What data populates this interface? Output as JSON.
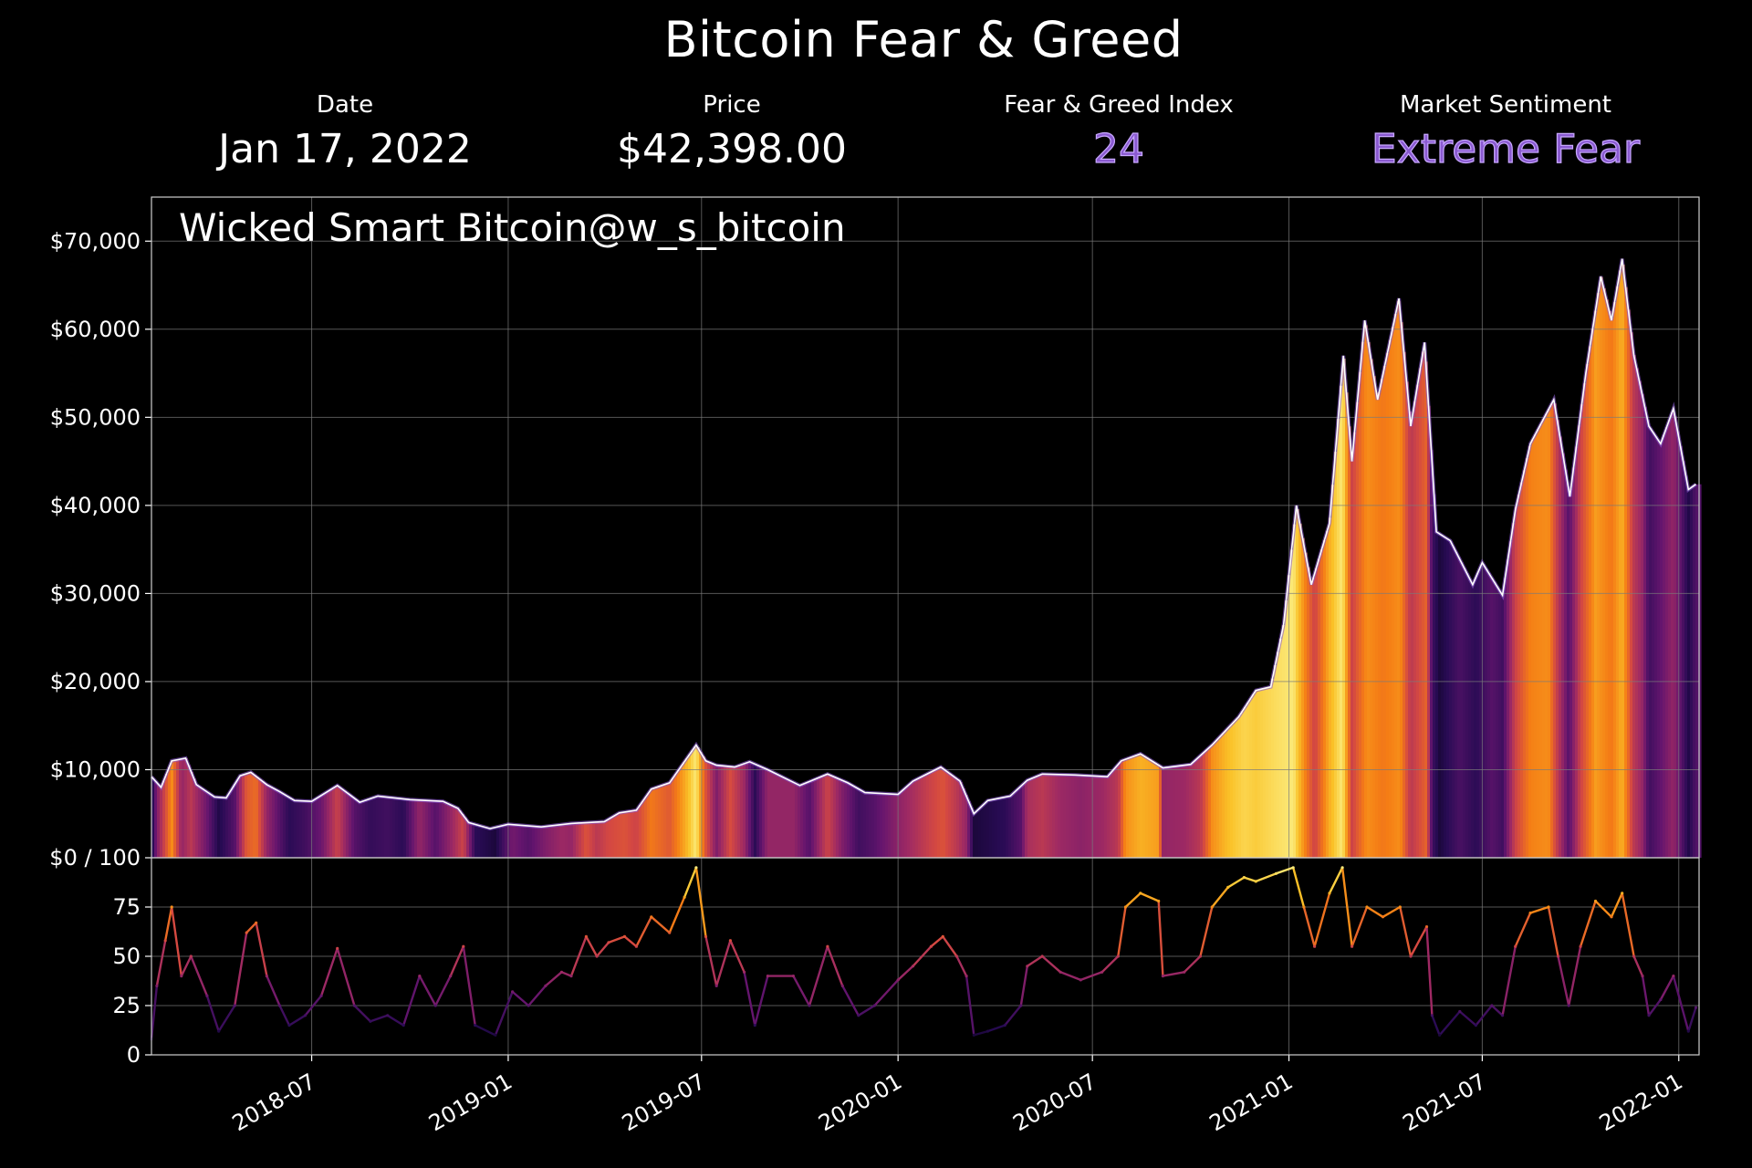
{
  "title": "Bitcoin Fear & Greed",
  "stats": {
    "date_label": "Date",
    "date_value": "Jan 17, 2022",
    "price_label": "Price",
    "price_value": "$42,398.00",
    "index_label": "Fear & Greed Index",
    "index_value": "24",
    "sentiment_label": "Market Sentiment",
    "sentiment_value": "Extreme Fear"
  },
  "watermark": "Wicked Smart Bitcoin@w_s_bitcoin",
  "colors": {
    "background": "#000000",
    "accent": "#8a5ad0",
    "price_line": "#ffffff",
    "grid": "#7a7a7a",
    "colormap": [
      "#000004",
      "#280b54",
      "#65156e",
      "#9f2a63",
      "#d44842",
      "#f57d15",
      "#fac228",
      "#fcffa4"
    ]
  },
  "chart_data": [
    {
      "type": "area",
      "name": "price",
      "x_axis": "date",
      "y_ticks": [
        "$0 / 100",
        "$10,000",
        "$20,000",
        "$30,000",
        "$40,000",
        "$50,000",
        "$60,000",
        "$70,000"
      ],
      "ylim": [
        0,
        75000
      ],
      "xlim": [
        "2018-02-01",
        "2022-01-20"
      ],
      "grid": true,
      "fill_colored_by": "Fear & Greed Index",
      "points": [
        [
          "2018-02-01",
          9200
        ],
        [
          "2018-02-10",
          8000
        ],
        [
          "2018-02-20",
          11000
        ],
        [
          "2018-03-05",
          11300
        ],
        [
          "2018-03-15",
          8300
        ],
        [
          "2018-04-01",
          6900
        ],
        [
          "2018-04-12",
          6800
        ],
        [
          "2018-04-25",
          9300
        ],
        [
          "2018-05-05",
          9700
        ],
        [
          "2018-05-20",
          8300
        ],
        [
          "2018-06-01",
          7500
        ],
        [
          "2018-06-15",
          6500
        ],
        [
          "2018-07-01",
          6400
        ],
        [
          "2018-07-25",
          8200
        ],
        [
          "2018-08-15",
          6300
        ],
        [
          "2018-09-01",
          7000
        ],
        [
          "2018-10-01",
          6600
        ],
        [
          "2018-11-01",
          6400
        ],
        [
          "2018-11-15",
          5600
        ],
        [
          "2018-11-25",
          4000
        ],
        [
          "2018-12-15",
          3300
        ],
        [
          "2019-01-01",
          3800
        ],
        [
          "2019-02-01",
          3500
        ],
        [
          "2019-03-01",
          3900
        ],
        [
          "2019-04-01",
          4100
        ],
        [
          "2019-04-15",
          5100
        ],
        [
          "2019-05-01",
          5400
        ],
        [
          "2019-05-15",
          7800
        ],
        [
          "2019-06-01",
          8500
        ],
        [
          "2019-06-26",
          12800
        ],
        [
          "2019-07-05",
          11000
        ],
        [
          "2019-07-15",
          10500
        ],
        [
          "2019-08-01",
          10300
        ],
        [
          "2019-08-15",
          10900
        ],
        [
          "2019-09-01",
          10000
        ],
        [
          "2019-10-01",
          8200
        ],
        [
          "2019-10-27",
          9500
        ],
        [
          "2019-11-15",
          8500
        ],
        [
          "2019-12-01",
          7400
        ],
        [
          "2020-01-01",
          7200
        ],
        [
          "2020-01-15",
          8700
        ],
        [
          "2020-02-10",
          10300
        ],
        [
          "2020-02-28",
          8700
        ],
        [
          "2020-03-12",
          5000
        ],
        [
          "2020-03-25",
          6500
        ],
        [
          "2020-04-15",
          7000
        ],
        [
          "2020-05-01",
          8800
        ],
        [
          "2020-05-15",
          9500
        ],
        [
          "2020-06-15",
          9400
        ],
        [
          "2020-07-15",
          9200
        ],
        [
          "2020-07-28",
          11000
        ],
        [
          "2020-08-15",
          11800
        ],
        [
          "2020-09-05",
          10200
        ],
        [
          "2020-10-01",
          10600
        ],
        [
          "2020-10-21",
          12800
        ],
        [
          "2020-11-15",
          16000
        ],
        [
          "2020-12-01",
          19000
        ],
        [
          "2020-12-15",
          19400
        ],
        [
          "2020-12-27",
          26500
        ],
        [
          "2021-01-08",
          40000
        ],
        [
          "2021-01-22",
          31000
        ],
        [
          "2021-02-08",
          38000
        ],
        [
          "2021-02-21",
          57000
        ],
        [
          "2021-03-01",
          45000
        ],
        [
          "2021-03-13",
          61000
        ],
        [
          "2021-03-25",
          52000
        ],
        [
          "2021-04-14",
          63500
        ],
        [
          "2021-04-25",
          49000
        ],
        [
          "2021-05-08",
          58500
        ],
        [
          "2021-05-19",
          37000
        ],
        [
          "2021-06-01",
          36000
        ],
        [
          "2021-06-22",
          31000
        ],
        [
          "2021-07-01",
          33500
        ],
        [
          "2021-07-20",
          29800
        ],
        [
          "2021-08-01",
          39500
        ],
        [
          "2021-08-15",
          47000
        ],
        [
          "2021-09-06",
          52000
        ],
        [
          "2021-09-21",
          41000
        ],
        [
          "2021-10-06",
          55000
        ],
        [
          "2021-10-20",
          66000
        ],
        [
          "2021-10-30",
          61000
        ],
        [
          "2021-11-09",
          68000
        ],
        [
          "2021-11-20",
          57000
        ],
        [
          "2021-12-04",
          49000
        ],
        [
          "2021-12-15",
          47000
        ],
        [
          "2021-12-27",
          51000
        ],
        [
          "2022-01-10",
          41800
        ],
        [
          "2022-01-17",
          42398
        ]
      ]
    },
    {
      "type": "line",
      "name": "Fear & Greed Index",
      "x_axis": "date",
      "y_ticks": [
        "0",
        "25",
        "50",
        "75"
      ],
      "ylim": [
        0,
        100
      ],
      "grid": true,
      "x_ticks": [
        "2018-07",
        "2019-01",
        "2019-07",
        "2020-01",
        "2020-07",
        "2021-01",
        "2021-07",
        "2022-01"
      ],
      "points": [
        [
          "2018-02-01",
          8
        ],
        [
          "2018-02-06",
          35
        ],
        [
          "2018-02-14",
          58
        ],
        [
          "2018-02-20",
          75
        ],
        [
          "2018-03-01",
          40
        ],
        [
          "2018-03-10",
          50
        ],
        [
          "2018-03-25",
          30
        ],
        [
          "2018-04-05",
          12
        ],
        [
          "2018-04-20",
          25
        ],
        [
          "2018-05-01",
          62
        ],
        [
          "2018-05-10",
          67
        ],
        [
          "2018-05-20",
          40
        ],
        [
          "2018-06-01",
          25
        ],
        [
          "2018-06-10",
          15
        ],
        [
          "2018-06-25",
          20
        ],
        [
          "2018-07-10",
          30
        ],
        [
          "2018-07-25",
          54
        ],
        [
          "2018-08-10",
          25
        ],
        [
          "2018-08-25",
          17
        ],
        [
          "2018-09-10",
          20
        ],
        [
          "2018-09-25",
          15
        ],
        [
          "2018-10-10",
          40
        ],
        [
          "2018-10-25",
          25
        ],
        [
          "2018-11-08",
          40
        ],
        [
          "2018-11-20",
          55
        ],
        [
          "2018-12-01",
          15
        ],
        [
          "2018-12-20",
          10
        ],
        [
          "2019-01-05",
          32
        ],
        [
          "2019-01-20",
          25
        ],
        [
          "2019-02-05",
          35
        ],
        [
          "2019-02-20",
          42
        ],
        [
          "2019-03-01",
          40
        ],
        [
          "2019-03-15",
          60
        ],
        [
          "2019-03-25",
          50
        ],
        [
          "2019-04-05",
          57
        ],
        [
          "2019-04-20",
          60
        ],
        [
          "2019-05-01",
          55
        ],
        [
          "2019-05-15",
          70
        ],
        [
          "2019-06-01",
          62
        ],
        [
          "2019-06-15",
          80
        ],
        [
          "2019-06-26",
          95
        ],
        [
          "2019-07-05",
          60
        ],
        [
          "2019-07-15",
          35
        ],
        [
          "2019-07-28",
          58
        ],
        [
          "2019-08-10",
          42
        ],
        [
          "2019-08-20",
          15
        ],
        [
          "2019-09-01",
          40
        ],
        [
          "2019-09-25",
          40
        ],
        [
          "2019-10-10",
          25
        ],
        [
          "2019-10-27",
          55
        ],
        [
          "2019-11-10",
          35
        ],
        [
          "2019-11-25",
          20
        ],
        [
          "2019-12-10",
          25
        ],
        [
          "2020-01-01",
          38
        ],
        [
          "2020-01-15",
          45
        ],
        [
          "2020-02-01",
          55
        ],
        [
          "2020-02-12",
          60
        ],
        [
          "2020-02-25",
          50
        ],
        [
          "2020-03-05",
          40
        ],
        [
          "2020-03-12",
          10
        ],
        [
          "2020-03-25",
          12
        ],
        [
          "2020-04-10",
          15
        ],
        [
          "2020-04-25",
          25
        ],
        [
          "2020-05-01",
          45
        ],
        [
          "2020-05-15",
          50
        ],
        [
          "2020-06-01",
          42
        ],
        [
          "2020-06-20",
          38
        ],
        [
          "2020-07-10",
          42
        ],
        [
          "2020-07-25",
          50
        ],
        [
          "2020-08-01",
          75
        ],
        [
          "2020-08-15",
          82
        ],
        [
          "2020-09-01",
          78
        ],
        [
          "2020-09-05",
          40
        ],
        [
          "2020-09-25",
          42
        ],
        [
          "2020-10-10",
          50
        ],
        [
          "2020-10-21",
          75
        ],
        [
          "2020-11-05",
          85
        ],
        [
          "2020-11-20",
          90
        ],
        [
          "2020-12-01",
          88
        ],
        [
          "2020-12-20",
          92
        ],
        [
          "2021-01-05",
          95
        ],
        [
          "2021-01-15",
          75
        ],
        [
          "2021-01-25",
          55
        ],
        [
          "2021-02-08",
          82
        ],
        [
          "2021-02-20",
          95
        ],
        [
          "2021-03-01",
          55
        ],
        [
          "2021-03-15",
          75
        ],
        [
          "2021-03-30",
          70
        ],
        [
          "2021-04-15",
          75
        ],
        [
          "2021-04-25",
          50
        ],
        [
          "2021-05-10",
          65
        ],
        [
          "2021-05-15",
          20
        ],
        [
          "2021-05-22",
          10
        ],
        [
          "2021-06-10",
          22
        ],
        [
          "2021-06-25",
          15
        ],
        [
          "2021-07-10",
          25
        ],
        [
          "2021-07-20",
          20
        ],
        [
          "2021-08-01",
          55
        ],
        [
          "2021-08-15",
          72
        ],
        [
          "2021-09-01",
          75
        ],
        [
          "2021-09-10",
          50
        ],
        [
          "2021-09-20",
          25
        ],
        [
          "2021-10-01",
          55
        ],
        [
          "2021-10-15",
          78
        ],
        [
          "2021-10-30",
          70
        ],
        [
          "2021-11-09",
          82
        ],
        [
          "2021-11-20",
          50
        ],
        [
          "2021-11-28",
          40
        ],
        [
          "2021-12-04",
          20
        ],
        [
          "2021-12-15",
          28
        ],
        [
          "2021-12-27",
          40
        ],
        [
          "2022-01-10",
          12
        ],
        [
          "2022-01-17",
          24
        ]
      ]
    }
  ]
}
